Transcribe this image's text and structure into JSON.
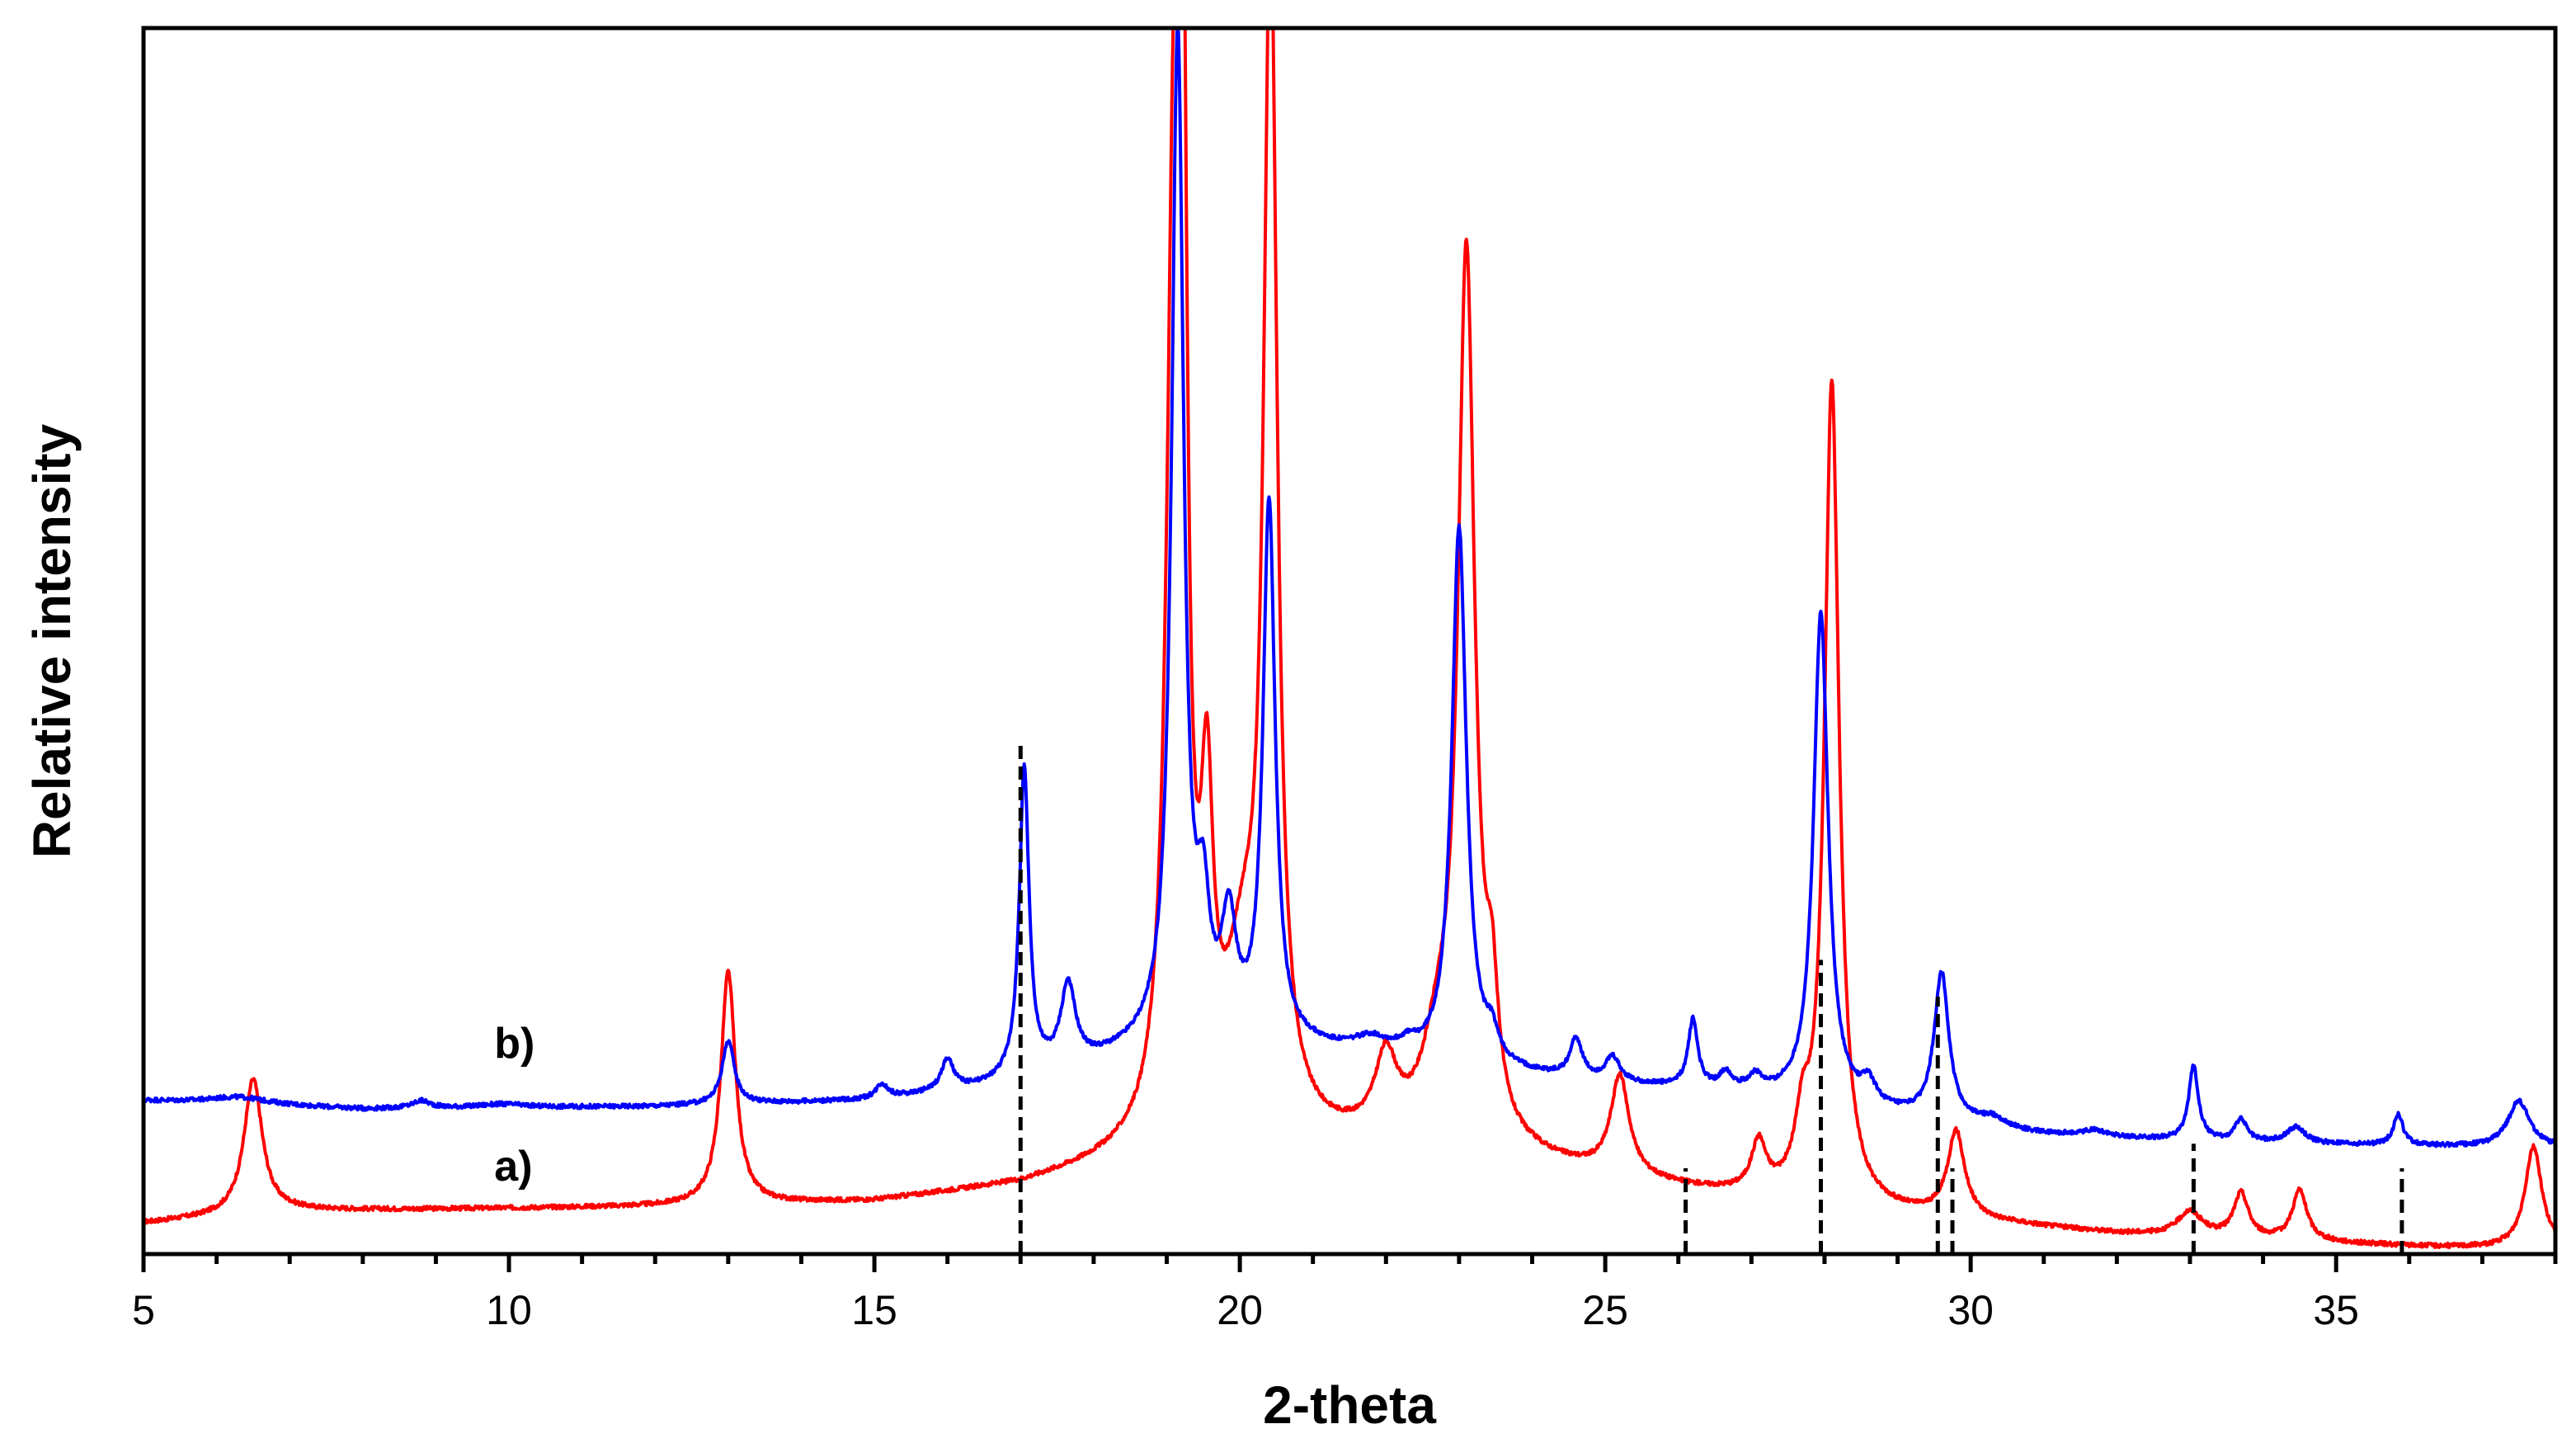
{
  "chart_data": {
    "type": "line",
    "title": "",
    "xlabel": "2-theta",
    "ylabel": "Relative intensity",
    "xlim": [
      5,
      38
    ],
    "ylim": [
      0,
      100
    ],
    "xticks": [
      5,
      10,
      15,
      20,
      25,
      30,
      35
    ],
    "x_minor_step": 1,
    "grid": false,
    "legend": "none",
    "series": [
      {
        "name": "a)",
        "color": "#ff0000",
        "baseline": [
          [
            5,
            2.5
          ],
          [
            7,
            3.5
          ],
          [
            12,
            3.8
          ],
          [
            15,
            4.2
          ],
          [
            17,
            5.5
          ],
          [
            18.5,
            7.5
          ],
          [
            20,
            8.5
          ],
          [
            22,
            8.5
          ],
          [
            24,
            7.2
          ],
          [
            26,
            5.2
          ],
          [
            28,
            3.6
          ],
          [
            30,
            2.6
          ],
          [
            32,
            1.6
          ],
          [
            36,
            0.6
          ],
          [
            38,
            0.3
          ]
        ],
        "peaks": [
          [
            6.5,
            11,
            0.15
          ],
          [
            13.0,
            19,
            0.12
          ],
          [
            19.1,
            75,
            0.12
          ],
          [
            19.22,
            70,
            0.07
          ],
          [
            19.55,
            23,
            0.1
          ],
          [
            20.05,
            12,
            0.3
          ],
          [
            20.42,
            95,
            0.11
          ],
          [
            22.0,
            6,
            0.18
          ],
          [
            22.7,
            6,
            0.25
          ],
          [
            23.1,
            72,
            0.14
          ],
          [
            23.45,
            9,
            0.1
          ],
          [
            25.2,
            8,
            0.15
          ],
          [
            27.1,
            4,
            0.12
          ],
          [
            27.7,
            5,
            0.12
          ],
          [
            28.1,
            67,
            0.12
          ],
          [
            29.8,
            7,
            0.14
          ],
          [
            33.0,
            2,
            0.2
          ],
          [
            33.7,
            3.6,
            0.12
          ],
          [
            34.5,
            4.1,
            0.12
          ],
          [
            37.7,
            8.4,
            0.14
          ]
        ]
      },
      {
        "name": "b)",
        "color": "#0000ff",
        "baseline": [
          [
            5,
            12.5
          ],
          [
            8,
            11.8
          ],
          [
            12,
            12.0
          ],
          [
            15,
            12.5
          ],
          [
            16.5,
            13.5
          ],
          [
            18,
            15.5
          ],
          [
            19,
            17
          ],
          [
            21,
            16.5
          ],
          [
            23,
            15
          ],
          [
            25,
            13.8
          ],
          [
            27,
            13
          ],
          [
            29,
            11.2
          ],
          [
            31,
            9.7
          ],
          [
            33,
            9.2
          ],
          [
            35,
            8.9
          ],
          [
            38,
            8.6
          ]
        ],
        "peaks": [
          [
            6.3,
            0.6,
            0.5
          ],
          [
            8.8,
            0.6,
            0.15
          ],
          [
            9.9,
            0.3,
            0.4
          ],
          [
            13.0,
            5.2,
            0.1
          ],
          [
            15.1,
            1.2,
            0.1
          ],
          [
            16.0,
            2.5,
            0.1
          ],
          [
            17.05,
            25,
            0.08
          ],
          [
            17.65,
            6.5,
            0.12
          ],
          [
            19.15,
            82,
            0.1
          ],
          [
            19.5,
            9,
            0.1
          ],
          [
            19.85,
            9,
            0.12
          ],
          [
            20.4,
            44,
            0.1
          ],
          [
            21.8,
            1.2,
            0.3
          ],
          [
            22.3,
            0.8,
            0.15
          ],
          [
            23.0,
            44,
            0.12
          ],
          [
            23.45,
            2,
            0.1
          ],
          [
            24.6,
            3.2,
            0.1
          ],
          [
            25.1,
            2,
            0.12
          ],
          [
            26.2,
            5.5,
            0.08
          ],
          [
            26.65,
            1.3,
            0.1
          ],
          [
            27.05,
            1.1,
            0.1
          ],
          [
            27.95,
            40,
            0.12
          ],
          [
            28.6,
            1.8,
            0.12
          ],
          [
            29.6,
            12,
            0.12
          ],
          [
            30.3,
            0.7,
            0.2
          ],
          [
            31.7,
            0.5,
            0.2
          ],
          [
            33.05,
            6,
            0.08
          ],
          [
            33.7,
            1.8,
            0.1
          ],
          [
            34.45,
            1.3,
            0.15
          ],
          [
            35.85,
            2.5,
            0.08
          ],
          [
            37.5,
            3.8,
            0.18
          ]
        ]
      }
    ],
    "reference_lines": [
      {
        "x": 17.0,
        "y_top": 42
      },
      {
        "x": 26.1,
        "y_top": 7
      },
      {
        "x": 27.95,
        "y_top": 24
      },
      {
        "x": 29.55,
        "y_top": 21
      },
      {
        "x": 29.75,
        "y_top": 7
      },
      {
        "x": 33.05,
        "y_top": 9
      },
      {
        "x": 35.9,
        "y_top": 7
      }
    ],
    "series_labels": [
      {
        "text": "a)",
        "x": 9.8,
        "y": 6
      },
      {
        "text": "b)",
        "x": 9.8,
        "y": 16
      }
    ]
  }
}
